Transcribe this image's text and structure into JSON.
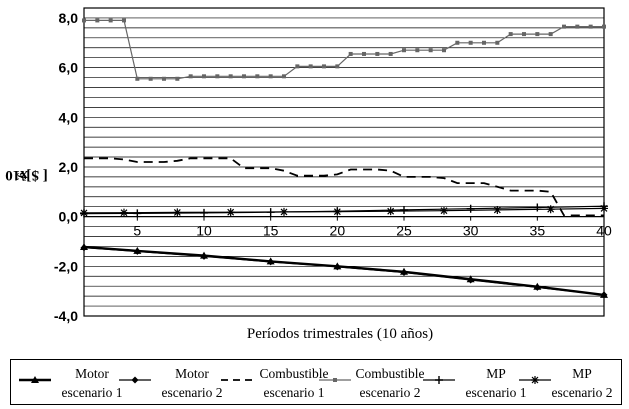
{
  "chart_data": {
    "type": "line",
    "xlabel": "Períodos trimestrales (10 años)",
    "ylabel": "[ $ x10",
    "ylabel_exp": "6",
    "ylabel_tail": " ]ª",
    "xlim": [
      1,
      40
    ],
    "ylim": [
      -4,
      8.4
    ],
    "xticks": [
      5,
      10,
      15,
      20,
      25,
      30,
      35,
      40
    ],
    "xtick_labels": [
      "5",
      "10",
      "15",
      "20",
      "25",
      "30",
      "35",
      "40"
    ],
    "yticks": [
      -4,
      -2,
      0,
      2,
      4,
      6,
      8
    ],
    "ytick_labels": [
      "-4,0",
      "-2,0",
      "0,0",
      "2,0",
      "4,0",
      "6,0",
      "8,0"
    ],
    "grid": true,
    "legend_position": "bottom",
    "series": [
      {
        "name": "Motor\nescenario 1",
        "color": "#000000",
        "style": "solid-thick",
        "marker": "triangle",
        "x": [
          1,
          5,
          10,
          15,
          20,
          25,
          30,
          35,
          40
        ],
        "y": [
          -1.22,
          -1.38,
          -1.57,
          -1.8,
          -2.0,
          -2.22,
          -2.52,
          -2.82,
          -3.15
        ]
      },
      {
        "name": "Motor\nescenario 2",
        "color": "#000000",
        "style": "solid",
        "marker": "diamond",
        "x": [
          1,
          5,
          10,
          15,
          20,
          25,
          30,
          35,
          40
        ],
        "y": [
          -1.25,
          -1.4,
          -1.6,
          -1.82,
          -2.02,
          -2.25,
          -2.55,
          -2.85,
          -3.15
        ]
      },
      {
        "name": "Combustible\nescenario 1",
        "color": "#000000",
        "style": "dashed",
        "marker": "none",
        "x": [
          1,
          3,
          4,
          5,
          7,
          8,
          9,
          11,
          12,
          13,
          15,
          16,
          17,
          19,
          20,
          21,
          23,
          24,
          25,
          27,
          28,
          29,
          31,
          32,
          33,
          35,
          36,
          37,
          40
        ],
        "y": [
          2.35,
          2.35,
          2.3,
          2.2,
          2.2,
          2.25,
          2.35,
          2.35,
          2.35,
          1.95,
          1.95,
          1.85,
          1.65,
          1.65,
          1.7,
          1.9,
          1.9,
          1.85,
          1.6,
          1.6,
          1.55,
          1.35,
          1.35,
          1.2,
          1.05,
          1.05,
          1.0,
          0.05,
          0.05
        ]
      },
      {
        "name": "Combustible\nescenario 2",
        "color": "#666666",
        "style": "solid",
        "marker": "square",
        "x": [
          1,
          2,
          3,
          4,
          5,
          6,
          7,
          8,
          9,
          10,
          11,
          12,
          13,
          14,
          15,
          16,
          17,
          18,
          19,
          20,
          21,
          22,
          23,
          24,
          25,
          26,
          27,
          28,
          29,
          30,
          31,
          32,
          33,
          34,
          35,
          36,
          37,
          38,
          39,
          40
        ],
        "y": [
          7.9,
          7.9,
          7.9,
          7.9,
          5.55,
          5.55,
          5.55,
          5.55,
          5.65,
          5.65,
          5.65,
          5.65,
          5.65,
          5.65,
          5.65,
          5.65,
          6.05,
          6.05,
          6.05,
          6.05,
          6.55,
          6.55,
          6.55,
          6.55,
          6.7,
          6.7,
          6.7,
          6.7,
          7.0,
          7.0,
          7.0,
          7.0,
          7.35,
          7.35,
          7.35,
          7.35,
          7.65,
          7.65,
          7.65,
          7.65
        ]
      },
      {
        "name": "MP\nescenario 1",
        "color": "#000000",
        "style": "solid",
        "marker": "plus",
        "x": [
          1,
          5,
          10,
          15,
          20,
          25,
          30,
          35,
          40
        ],
        "y": [
          0.12,
          0.13,
          0.15,
          0.18,
          0.22,
          0.27,
          0.32,
          0.37,
          0.42
        ]
      },
      {
        "name": "MP\nescenario 2",
        "color": "#000000",
        "style": "solid",
        "marker": "star",
        "x": [
          1,
          4,
          8,
          12,
          16,
          20,
          24,
          28,
          32,
          36,
          40
        ],
        "y": [
          0.15,
          0.16,
          0.17,
          0.18,
          0.19,
          0.2,
          0.22,
          0.24,
          0.27,
          0.3,
          0.33
        ]
      }
    ]
  }
}
